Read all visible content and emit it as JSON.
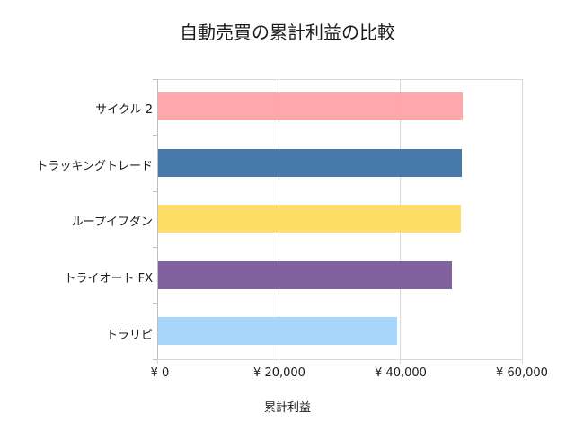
{
  "chart_data": {
    "type": "bar",
    "orientation": "horizontal",
    "title": "自動売買の累計利益の比較",
    "xlabel": "累計利益",
    "ylabel": "",
    "categories": [
      "サイクル 2",
      "トラッキングトレード",
      "ループイフダン",
      "トライオート FX",
      "トラリピ"
    ],
    "values": [
      50200,
      50000,
      49900,
      48400,
      39400
    ],
    "colors": [
      "#ffa3a6",
      "#3d72a6",
      "#ffdc5e",
      "#7a5a99",
      "#a3d5fd"
    ],
    "xlim": [
      0,
      60000
    ],
    "xticks": [
      "¥ 0",
      "¥ 20,000",
      "¥ 40,000",
      "¥ 60,000"
    ],
    "grid": "vertical",
    "legend": "none"
  },
  "title": "自動売買の累計利益の比較",
  "axis_title": "累計利益",
  "categories": [
    "サイクル 2",
    "トラッキングトレード",
    "ループイフダン",
    "トライオート FX",
    "トラリピ"
  ],
  "xticks": [
    "¥ 0",
    "¥ 20,000",
    "¥ 40,000",
    "¥ 60,000"
  ]
}
